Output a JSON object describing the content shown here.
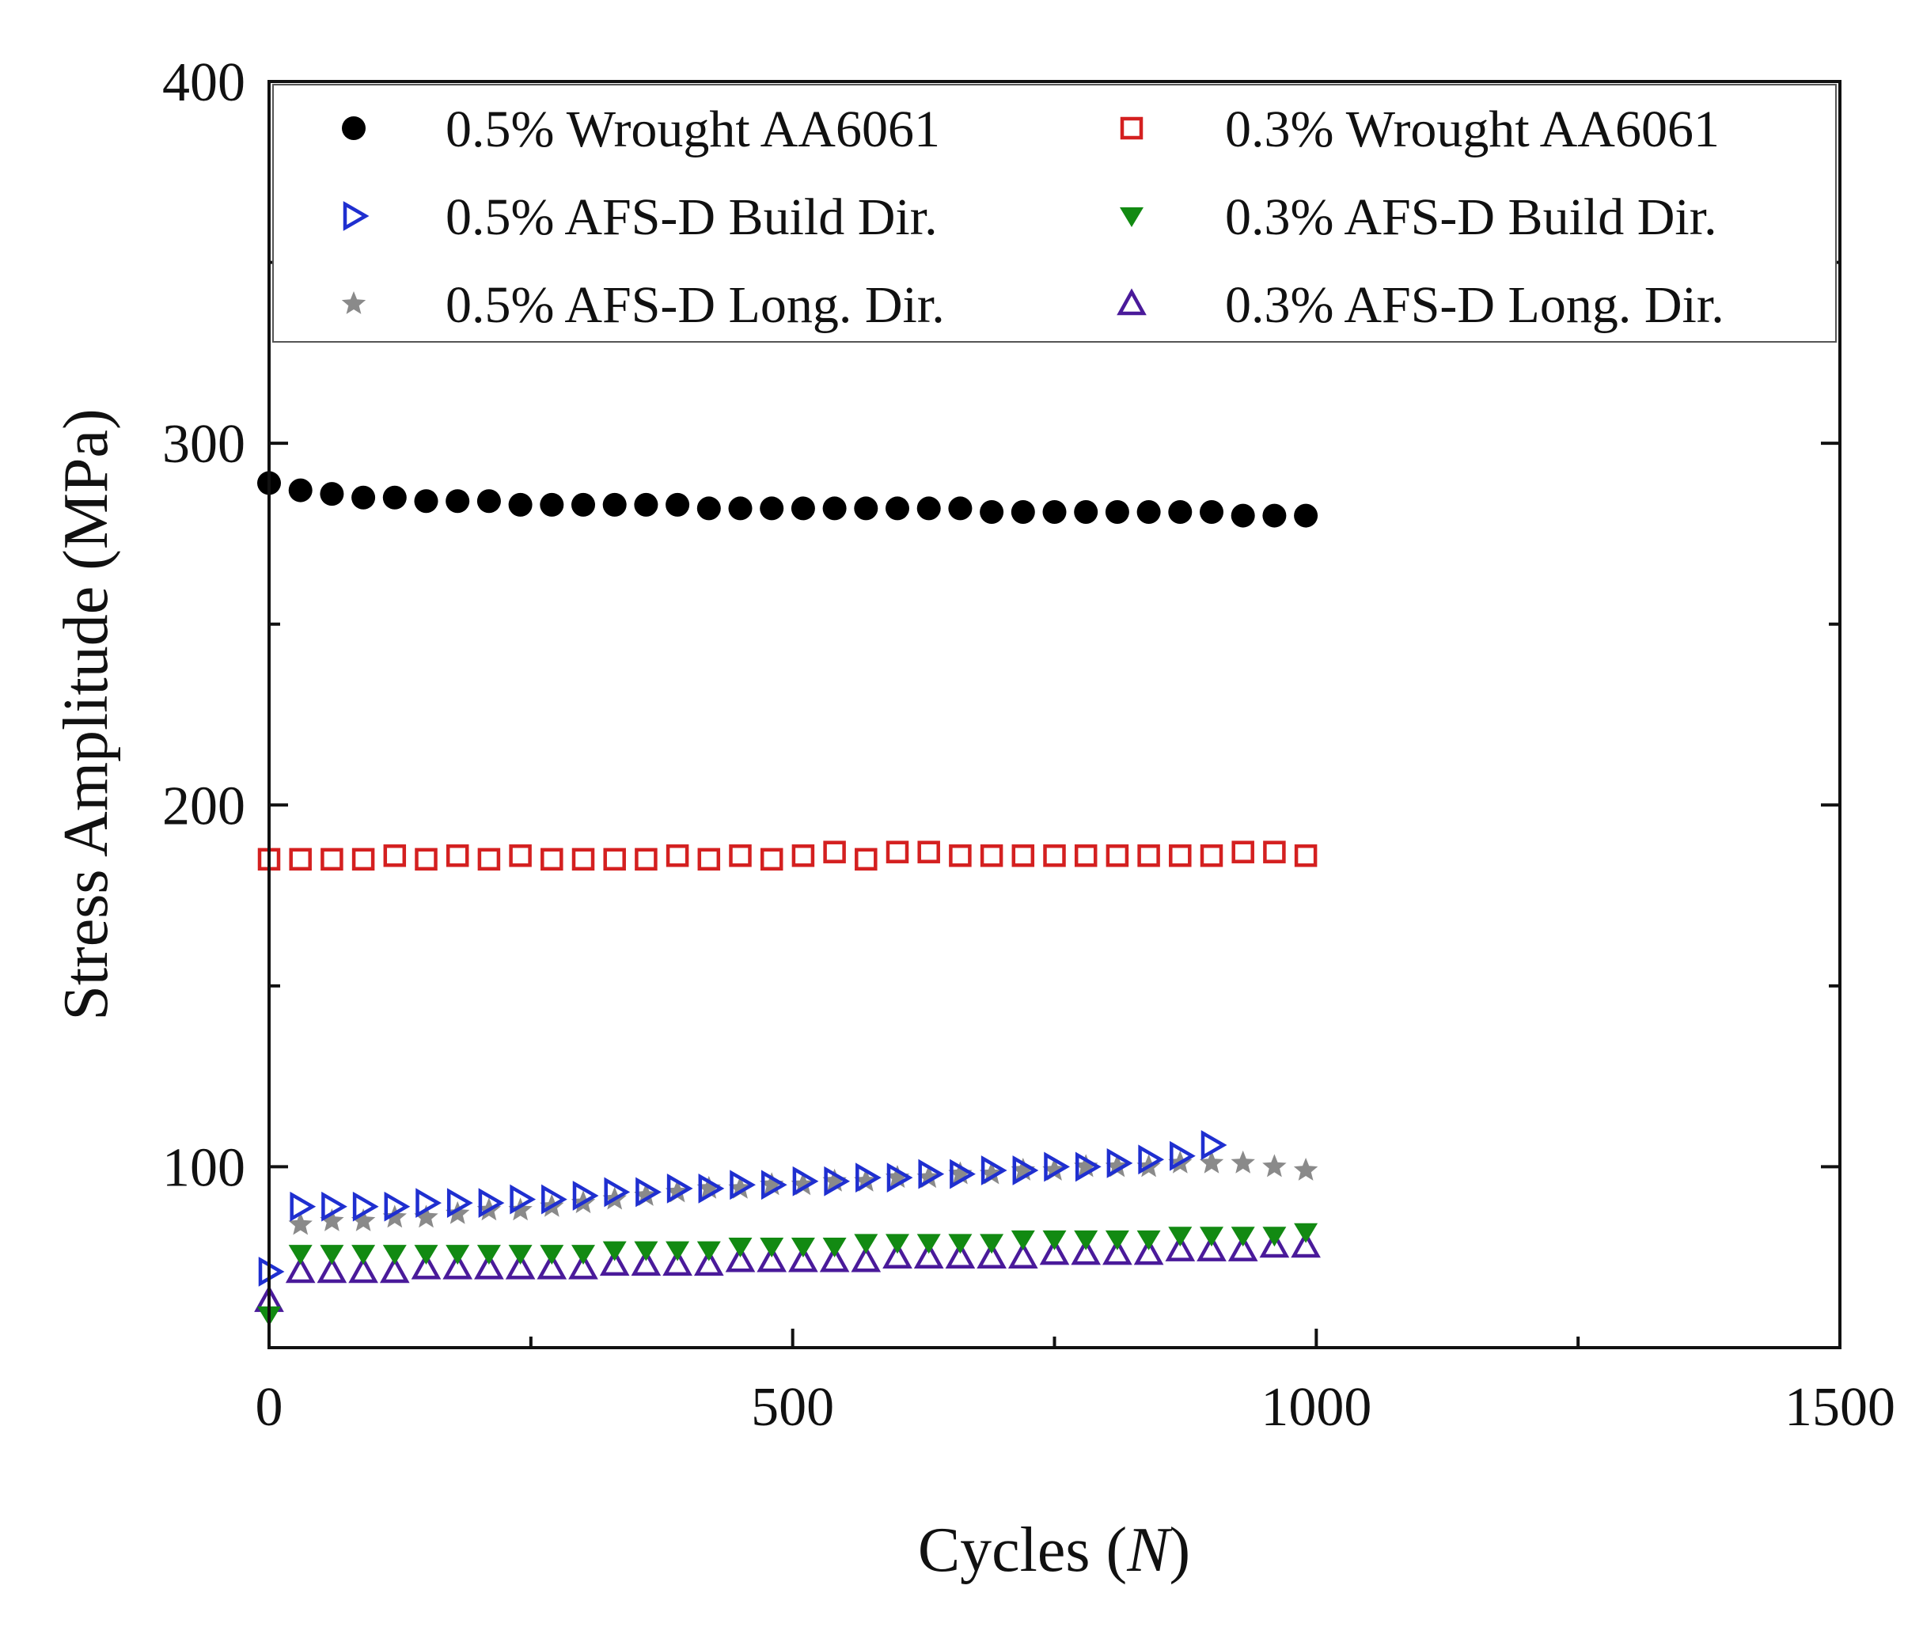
{
  "chart_data": {
    "type": "scatter",
    "title": "",
    "xlabel_text": "Cycles (",
    "xlabel_var": "N",
    "xlabel_close": ")",
    "ylabel": "Stress Amplitude (MPa)",
    "xlim": [
      0,
      1500
    ],
    "ylim": [
      50,
      400
    ],
    "x_ticks": [
      0,
      500,
      1000,
      1500
    ],
    "x_tick_labels": [
      "0",
      "500",
      "1000",
      "1500"
    ],
    "y_ticks": [
      100,
      200,
      300,
      400
    ],
    "y_tick_labels": [
      "100",
      "200",
      "300",
      "400"
    ],
    "legend_position": "top",
    "series": [
      {
        "name": "0.5% Wrought AA6061",
        "marker": "circle-filled",
        "color": "#000000",
        "x": [
          0,
          30,
          60,
          90,
          120,
          150,
          180,
          210,
          240,
          270,
          300,
          330,
          360,
          390,
          420,
          450,
          480,
          510,
          540,
          570,
          600,
          630,
          660,
          690,
          720,
          750,
          780,
          810,
          840,
          870,
          900,
          930,
          960,
          990
        ],
        "y": [
          289,
          287,
          286,
          285,
          285,
          284,
          284,
          284,
          283,
          283,
          283,
          283,
          283,
          283,
          282,
          282,
          282,
          282,
          282,
          282,
          282,
          282,
          282,
          281,
          281,
          281,
          281,
          281,
          281,
          281,
          281,
          280,
          280,
          280
        ]
      },
      {
        "name": "0.3% Wrought AA6061",
        "marker": "square-open",
        "color": "#d42020",
        "x": [
          0,
          30,
          60,
          90,
          120,
          150,
          180,
          210,
          240,
          270,
          300,
          330,
          360,
          390,
          420,
          450,
          480,
          510,
          540,
          570,
          600,
          630,
          660,
          690,
          720,
          750,
          780,
          810,
          840,
          870,
          900,
          930,
          960,
          990
        ],
        "y": [
          185,
          185,
          185,
          185,
          186,
          185,
          186,
          185,
          186,
          185,
          185,
          185,
          185,
          186,
          185,
          186,
          185,
          186,
          187,
          185,
          187,
          187,
          186,
          186,
          186,
          186,
          186,
          186,
          186,
          186,
          186,
          187,
          187,
          186
        ]
      },
      {
        "name": "0.5% AFS-D Build Dir.",
        "marker": "triangle-right-open",
        "color": "#1f2fd0",
        "x": [
          0,
          30,
          60,
          90,
          120,
          150,
          180,
          210,
          240,
          270,
          300,
          330,
          360,
          390,
          420,
          450,
          480,
          510,
          540,
          570,
          600,
          630,
          660,
          690,
          720,
          750,
          780,
          810,
          840,
          870,
          900
        ],
        "y": [
          71,
          89,
          89,
          89,
          89,
          90,
          90,
          90,
          91,
          91,
          92,
          93,
          93,
          94,
          94,
          95,
          95,
          96,
          96,
          97,
          97,
          98,
          98,
          99,
          99,
          100,
          100,
          101,
          102,
          103,
          106
        ]
      },
      {
        "name": "0.3% AFS-D Build Dir.",
        "marker": "triangle-down-filled",
        "color": "#128a12",
        "x": [
          0,
          30,
          60,
          90,
          120,
          150,
          180,
          210,
          240,
          270,
          300,
          330,
          360,
          390,
          420,
          450,
          480,
          510,
          540,
          570,
          600,
          630,
          660,
          690,
          720,
          750,
          780,
          810,
          840,
          870,
          900,
          930,
          960,
          990
        ],
        "y": [
          59,
          76,
          76,
          76,
          76,
          76,
          76,
          76,
          76,
          76,
          76,
          77,
          77,
          77,
          77,
          78,
          78,
          78,
          78,
          79,
          79,
          79,
          79,
          79,
          80,
          80,
          80,
          80,
          80,
          81,
          81,
          81,
          81,
          82
        ]
      },
      {
        "name": "0.5% AFS-D Long. Dir.",
        "marker": "star-filled",
        "color": "#8a8a8a",
        "x": [
          30,
          60,
          90,
          120,
          150,
          180,
          210,
          240,
          270,
          300,
          330,
          360,
          390,
          420,
          450,
          480,
          510,
          540,
          570,
          600,
          630,
          660,
          690,
          720,
          750,
          780,
          810,
          840,
          870,
          900,
          930,
          960,
          990
        ],
        "y": [
          84,
          85,
          85,
          86,
          86,
          87,
          88,
          88,
          89,
          90,
          91,
          92,
          93,
          94,
          94,
          95,
          95,
          96,
          96,
          97,
          97,
          98,
          98,
          99,
          99,
          100,
          100,
          100,
          101,
          101,
          101,
          100,
          99
        ]
      },
      {
        "name": "0.3% AFS-D Long. Dir.",
        "marker": "triangle-up-open",
        "color": "#4a1a9a",
        "x": [
          0,
          30,
          60,
          90,
          120,
          150,
          180,
          210,
          240,
          270,
          300,
          330,
          360,
          390,
          420,
          450,
          480,
          510,
          540,
          570,
          600,
          630,
          660,
          690,
          720,
          750,
          780,
          810,
          840,
          870,
          900,
          930,
          960,
          990
        ],
        "y": [
          63,
          71,
          71,
          71,
          71,
          72,
          72,
          72,
          72,
          72,
          72,
          73,
          73,
          73,
          73,
          74,
          74,
          74,
          74,
          74,
          75,
          75,
          75,
          75,
          75,
          76,
          76,
          76,
          76,
          77,
          77,
          77,
          78,
          78
        ]
      }
    ]
  }
}
